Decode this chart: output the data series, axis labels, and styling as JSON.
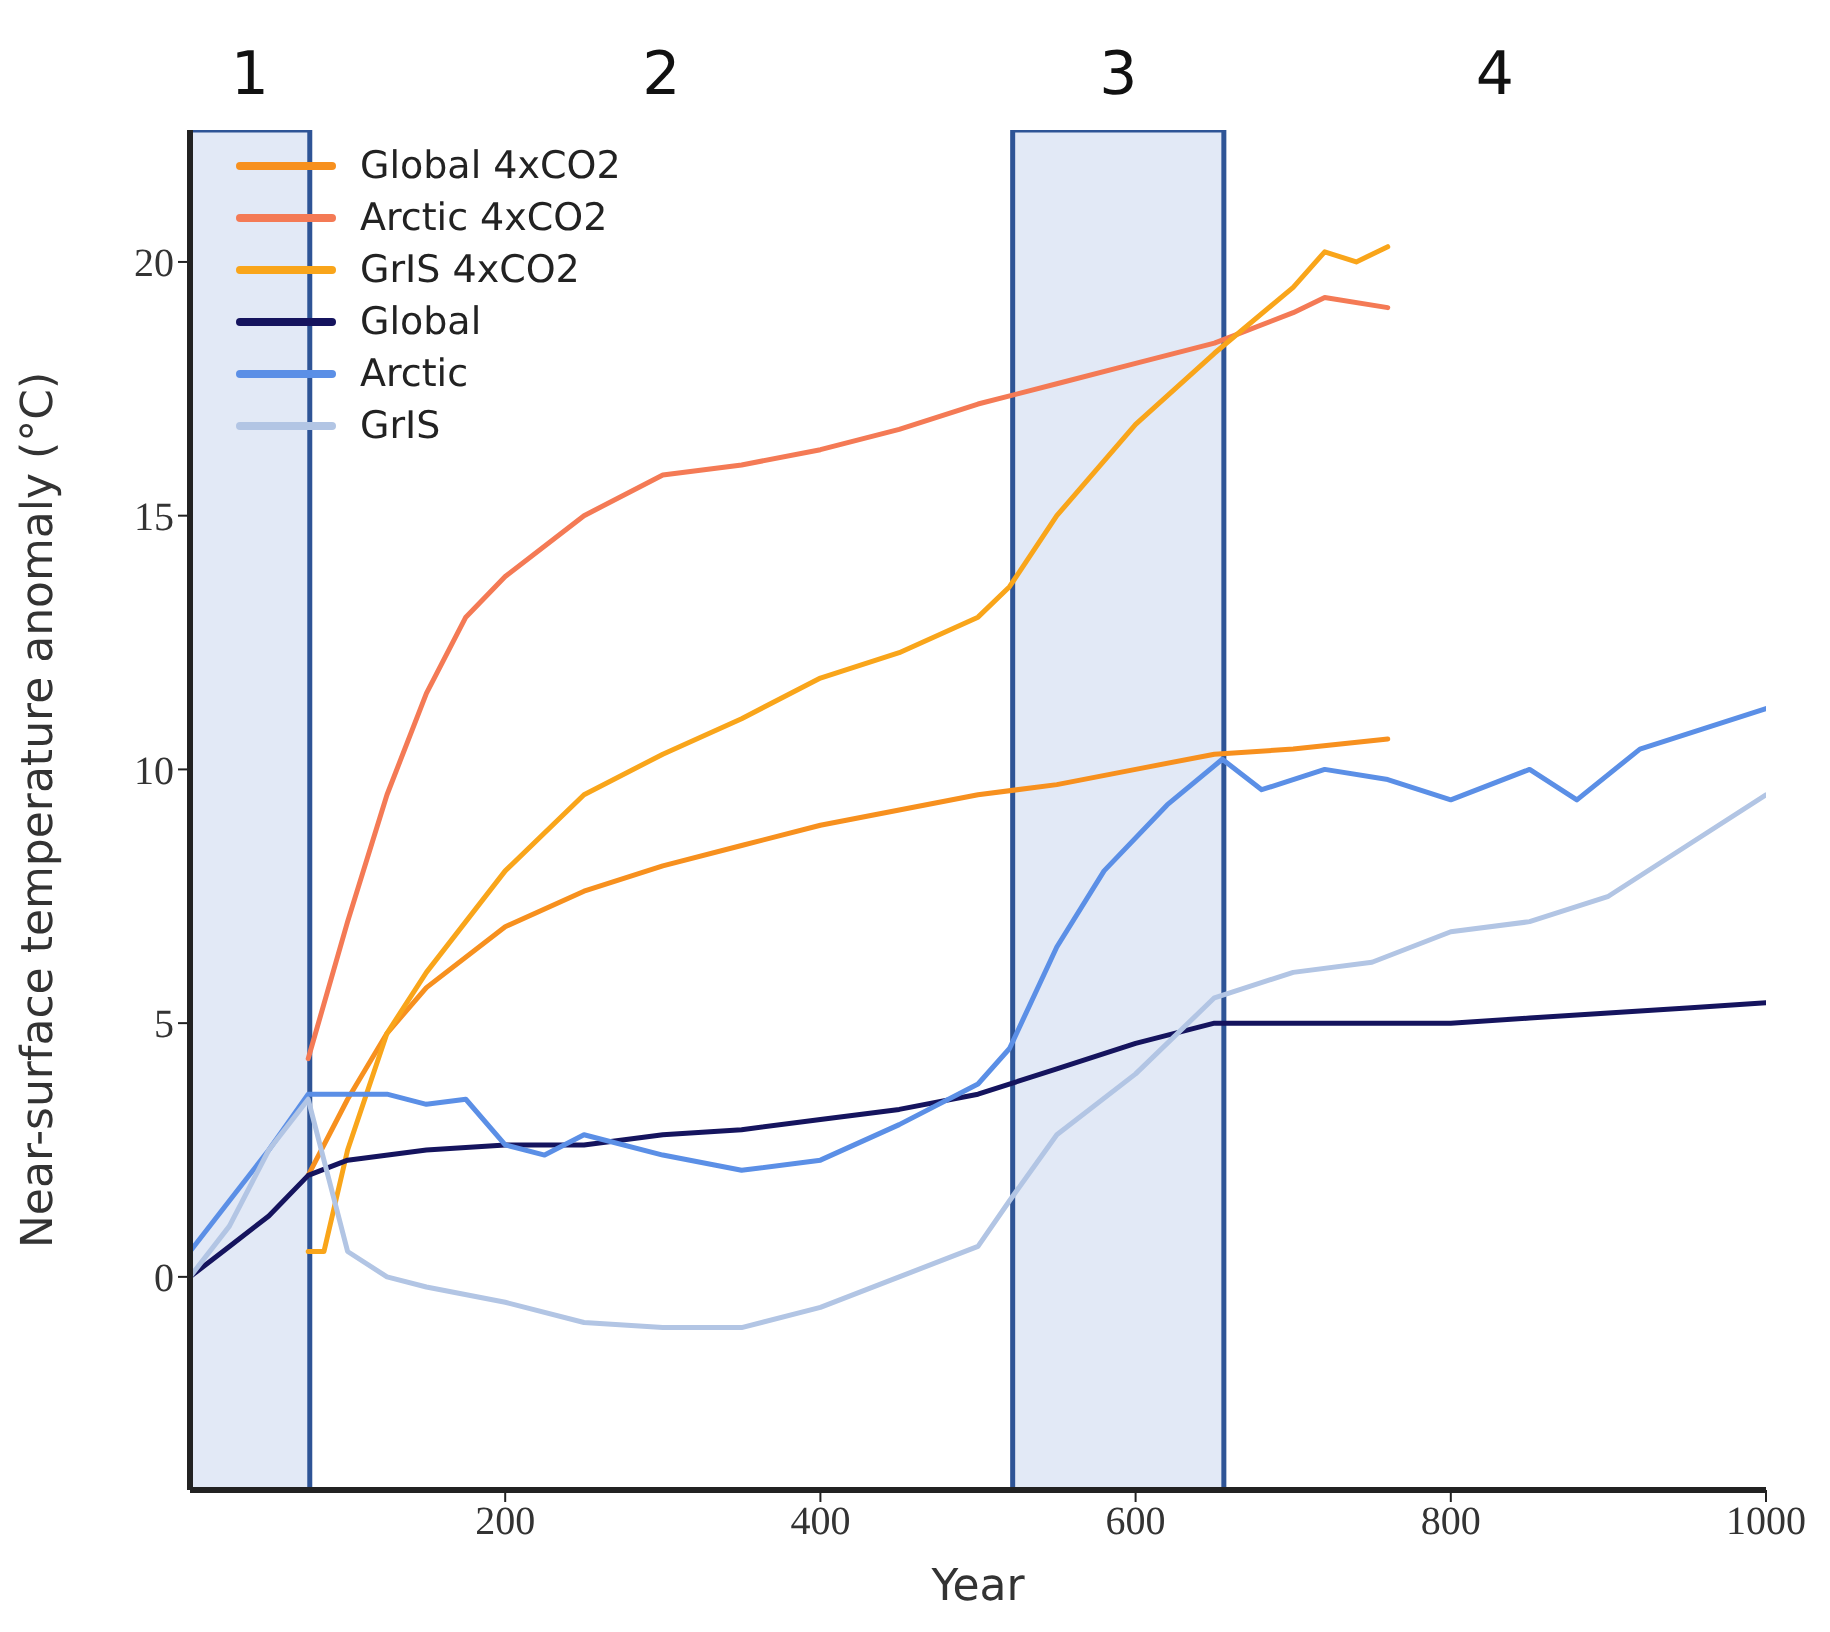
{
  "chart_data": {
    "type": "line",
    "xlabel": "Year",
    "ylabel": "Near-surface temperature anomaly (°C)",
    "xlim": [
      0,
      1000
    ],
    "ylim": [
      -4.2,
      22.6
    ],
    "xticks": [
      200,
      400,
      600,
      800,
      1000
    ],
    "yticks": [
      0,
      5,
      10,
      15,
      20
    ],
    "legend": "top left",
    "grid": false,
    "marker": "none",
    "line_style": "solid",
    "series": [
      {
        "name": "Global 4xCO2",
        "color": "#f7901e",
        "x": [
          75,
          100,
          125,
          150,
          200,
          250,
          300,
          350,
          400,
          450,
          500,
          550,
          600,
          650,
          700,
          760
        ],
        "values": [
          2.0,
          3.5,
          4.8,
          5.7,
          6.9,
          7.6,
          8.1,
          8.5,
          8.9,
          9.2,
          9.5,
          9.7,
          10.0,
          10.3,
          10.4,
          10.6
        ]
      },
      {
        "name": "Arctic 4xCO2",
        "color": "#f47a55",
        "x": [
          75,
          100,
          125,
          150,
          175,
          200,
          250,
          300,
          350,
          400,
          450,
          500,
          550,
          600,
          650,
          700,
          720,
          760
        ],
        "values": [
          4.3,
          7.0,
          9.5,
          11.5,
          13.0,
          13.8,
          15.0,
          15.8,
          16.0,
          16.3,
          16.7,
          17.2,
          17.6,
          18.0,
          18.4,
          19.0,
          19.3,
          19.1
        ]
      },
      {
        "name": "GrIS 4xCO2",
        "color": "#f9a51a",
        "x": [
          75,
          85,
          100,
          125,
          150,
          200,
          250,
          300,
          350,
          400,
          450,
          500,
          520,
          550,
          600,
          650,
          700,
          720,
          740,
          760
        ],
        "values": [
          0.5,
          0.5,
          2.5,
          4.8,
          6.0,
          8.0,
          9.5,
          10.3,
          11.0,
          11.8,
          12.3,
          13.0,
          13.6,
          15.0,
          16.8,
          18.2,
          19.5,
          20.2,
          20.0,
          20.3
        ]
      },
      {
        "name": "Global",
        "color": "#15145e",
        "x": [
          0,
          25,
          50,
          75,
          100,
          150,
          200,
          250,
          300,
          350,
          400,
          450,
          500,
          550,
          600,
          650,
          700,
          750,
          800,
          850,
          900,
          950,
          1000
        ],
        "values": [
          0,
          0.6,
          1.2,
          2.0,
          2.3,
          2.5,
          2.6,
          2.6,
          2.8,
          2.9,
          3.1,
          3.3,
          3.6,
          4.1,
          4.6,
          5.0,
          5.0,
          5.0,
          5.0,
          5.1,
          5.2,
          5.3,
          5.4
        ]
      },
      {
        "name": "Arctic",
        "color": "#5b8fe6",
        "x": [
          0,
          25,
          50,
          75,
          100,
          125,
          150,
          175,
          200,
          225,
          250,
          300,
          350,
          400,
          450,
          500,
          520,
          550,
          580,
          620,
          655,
          680,
          720,
          760,
          800,
          850,
          880,
          920,
          960,
          1000
        ],
        "values": [
          0.5,
          1.5,
          2.5,
          3.6,
          3.6,
          3.6,
          3.4,
          3.5,
          2.6,
          2.4,
          2.8,
          2.4,
          2.1,
          2.3,
          3.0,
          3.8,
          4.5,
          6.5,
          8.0,
          9.3,
          10.2,
          9.6,
          10.0,
          9.8,
          9.4,
          10.0,
          9.4,
          10.4,
          10.8,
          11.2
        ]
      },
      {
        "name": "GrIS",
        "color": "#b2c5e4",
        "x": [
          0,
          25,
          50,
          75,
          100,
          125,
          150,
          200,
          250,
          300,
          350,
          400,
          450,
          500,
          520,
          550,
          600,
          650,
          700,
          750,
          800,
          850,
          900,
          950,
          1000
        ],
        "values": [
          0,
          1.0,
          2.5,
          3.5,
          0.5,
          0,
          -0.2,
          -0.5,
          -0.9,
          -1.0,
          -1.0,
          -0.6,
          0,
          0.6,
          1.5,
          2.8,
          4.0,
          5.5,
          6.0,
          6.2,
          6.8,
          7.0,
          7.5,
          8.5,
          9.5
        ]
      }
    ],
    "bands": [
      {
        "axis": "x",
        "from": 0,
        "to": 76,
        "label": "1",
        "color": "#d6e0f2"
      },
      {
        "axis": "x",
        "from": 522,
        "to": 656,
        "label": "3",
        "color": "#d6e0f2"
      }
    ],
    "annotations": [
      "2",
      "4"
    ]
  }
}
